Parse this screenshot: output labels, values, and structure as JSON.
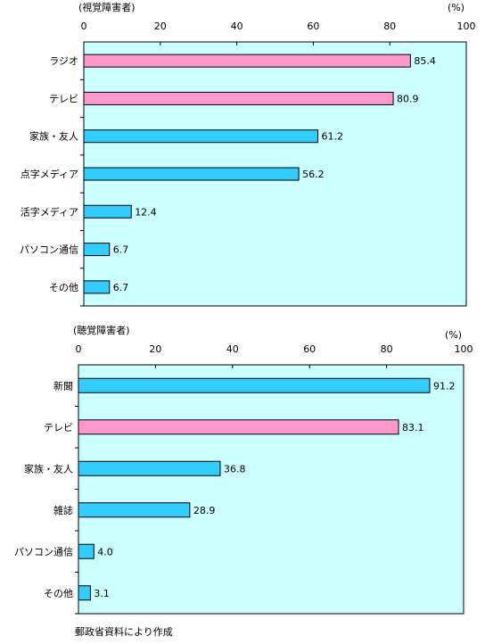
{
  "colors": {
    "plot_background": "#ccffff",
    "bar_blue": "#33ccff",
    "bar_pink": "#ff99cc",
    "axis": "#000000"
  },
  "chart_data": [
    {
      "type": "bar",
      "orientation": "horizontal",
      "group_label": "(視覚障害者)",
      "unit_label": "(%)",
      "xlim": [
        0,
        100
      ],
      "ticks": [
        "0",
        "20",
        "40",
        "60",
        "80",
        "100"
      ],
      "categories": [
        "ラジオ",
        "テレビ",
        "家族・友人",
        "点字メディア",
        "活字メディア",
        "パソコン通信",
        "その他"
      ],
      "values": [
        85.4,
        80.9,
        61.2,
        56.2,
        12.4,
        6.7,
        6.7
      ],
      "value_labels": [
        "85.4",
        "80.9",
        "61.2",
        "56.2",
        "12.4",
        "6.7",
        "6.7"
      ],
      "bar_colors": [
        "pink",
        "pink",
        "blue",
        "blue",
        "blue",
        "blue",
        "blue"
      ]
    },
    {
      "type": "bar",
      "orientation": "horizontal",
      "group_label": "(聴覚障害者)",
      "unit_label": "(%)",
      "xlim": [
        0,
        100
      ],
      "ticks": [
        "0",
        "20",
        "40",
        "60",
        "80",
        "100"
      ],
      "categories": [
        "新聞",
        "テレビ",
        "家族・友人",
        "雑誌",
        "パソコン通信",
        "その他"
      ],
      "values": [
        91.2,
        83.1,
        36.8,
        28.9,
        4.0,
        3.1
      ],
      "value_labels": [
        "91.2",
        "83.1",
        "36.8",
        "28.9",
        "4.0",
        "3.1"
      ],
      "bar_colors": [
        "blue",
        "pink",
        "blue",
        "blue",
        "blue",
        "blue"
      ]
    }
  ],
  "footer": "郵政省資料により作成"
}
